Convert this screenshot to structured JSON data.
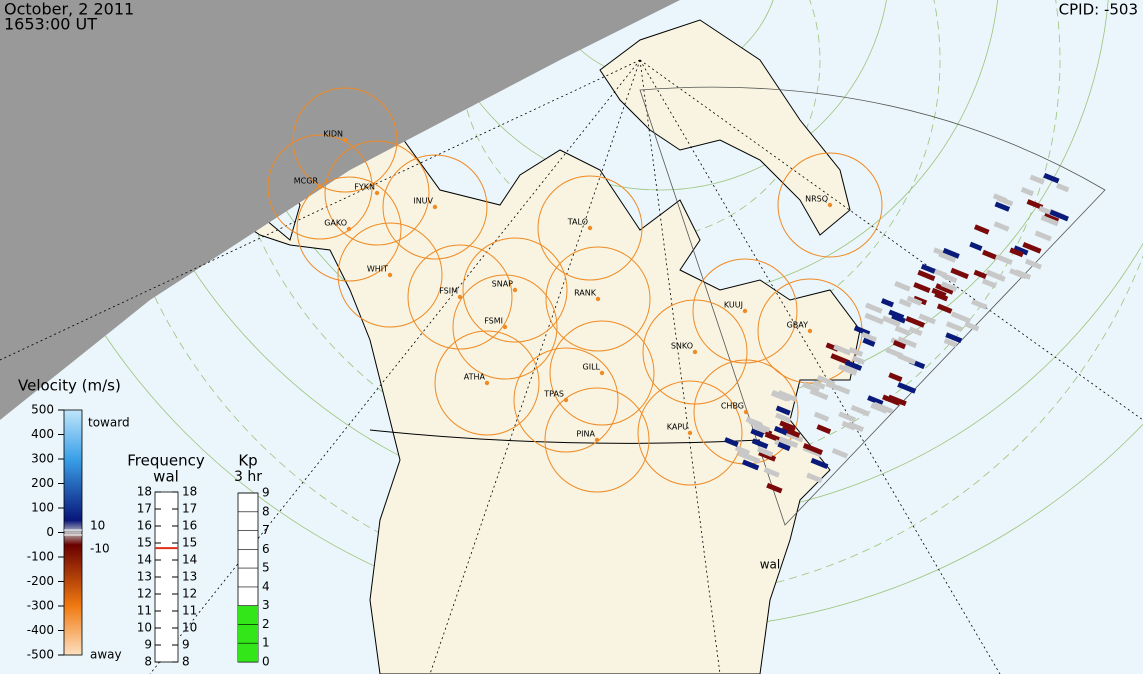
{
  "header": {
    "date": "October, 2 2011",
    "time": "1653:00 UT",
    "cpid": "CPID:  -503"
  },
  "stations": [
    "KIDN",
    "MCGR",
    "FYKN",
    "INUV",
    "GAKO",
    "TALO",
    "NRSQ",
    "WHIT",
    "FSIM",
    "SNAP",
    "RANK",
    "KUUJ",
    "GBAY",
    "FSMI",
    "SNKO",
    "GILL",
    "ATHA",
    "TPAS",
    "CHBG",
    "KAPU",
    "PINA"
  ],
  "velocity_scale": {
    "title": "Velocity (m/s)",
    "ticks": [
      500,
      400,
      300,
      200,
      100,
      0,
      -100,
      -200,
      -300,
      -400,
      -500
    ],
    "toward": "toward",
    "away": "away",
    "near_zero": [
      10,
      -10
    ]
  },
  "frequency": {
    "title": "Frequency",
    "radar": "wal",
    "ticks": [
      8,
      9,
      10,
      11,
      12,
      13,
      14,
      15,
      16,
      17,
      18
    ],
    "value": 14.7
  },
  "kp": {
    "title": "Kp",
    "subtitle": "3 hr",
    "ticks": [
      0,
      1,
      2,
      3,
      4,
      5,
      6,
      7,
      8,
      9
    ],
    "value": 3
  },
  "radar_label": "wal"
}
